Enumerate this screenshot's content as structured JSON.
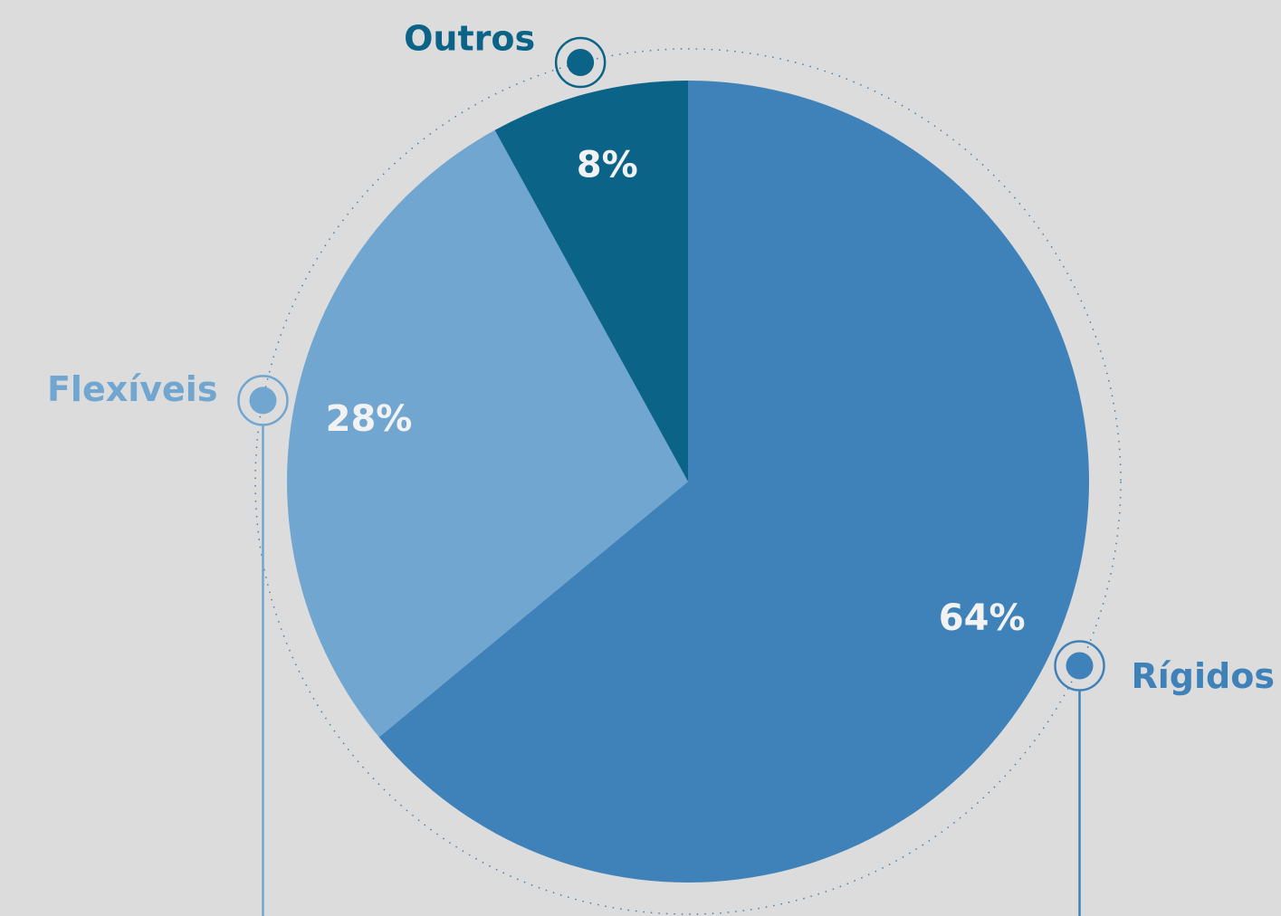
{
  "chart_data": {
    "type": "pie",
    "categories": [
      "Rígidos",
      "Flexíveis",
      "Outros"
    ],
    "values": [
      64,
      28,
      8
    ],
    "value_labels": [
      "64%",
      "28%",
      "8%"
    ],
    "colors": [
      "#3f82b9",
      "#70a6cf",
      "#0b6487"
    ]
  }
}
